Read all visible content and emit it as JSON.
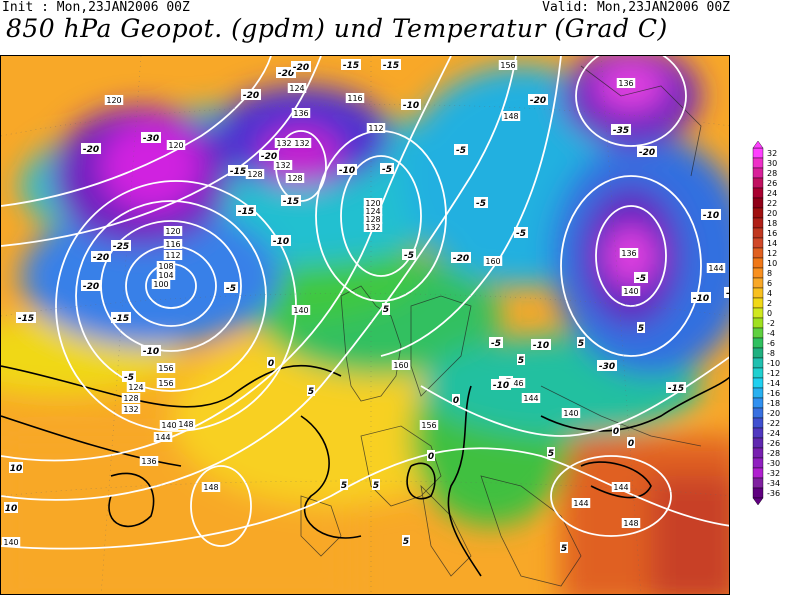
{
  "header": {
    "init_label": "Init : Mon,23JAN2006 00Z",
    "valid_label": "Valid: Mon,23JAN2006 00Z",
    "title": "850 hPa Geopot. (gpdm) und Temperatur (Grad C)"
  },
  "colorbar": {
    "levels": [
      "32",
      "30",
      "28",
      "26",
      "24",
      "22",
      "20",
      "18",
      "16",
      "14",
      "12",
      "10",
      "8",
      "6",
      "4",
      "2",
      "0",
      "-2",
      "-4",
      "-6",
      "-8",
      "-10",
      "-12",
      "-14",
      "-16",
      "-18",
      "-20",
      "-22",
      "-24",
      "-26",
      "-28",
      "-30",
      "-32",
      "-34",
      "-36"
    ],
    "colors": [
      "#ff40ff",
      "#ee30c8",
      "#d8209a",
      "#c01060",
      "#a80030",
      "#900018",
      "#a01010",
      "#b02018",
      "#c03820",
      "#d04828",
      "#e06020",
      "#f07818",
      "#f89020",
      "#f8a828",
      "#f8c020",
      "#f0d818",
      "#d0e820",
      "#a0e020",
      "#60d040",
      "#30c060",
      "#20b080",
      "#20c0b0",
      "#20d0d0",
      "#20d0f0",
      "#28b0f0",
      "#3090f0",
      "#3870e0",
      "#4050d0",
      "#5038c0",
      "#6028b0",
      "#7820b0",
      "#9020c0",
      "#b020d0",
      "#8020a0",
      "#600080"
    ]
  },
  "map_labels": {
    "geopot": [
      "120",
      "120",
      "124",
      "116",
      "112",
      "132",
      "132",
      "132",
      "128",
      "128",
      "120",
      "124",
      "128",
      "132",
      "120",
      "116",
      "112",
      "108",
      "104",
      "100",
      "140",
      "160",
      "156",
      "156",
      "148",
      "148",
      "148",
      "140",
      "144",
      "136",
      "132",
      "128",
      "124",
      "136",
      "140",
      "144",
      "156",
      "156",
      "146",
      "144",
      "140",
      "144",
      "148",
      "140",
      "136",
      "136",
      "144",
      "160"
    ],
    "temp": [
      "-20",
      "-20",
      "-30",
      "-15",
      "-20",
      "-20",
      "-15",
      "-10",
      "-5",
      "-10",
      "-15",
      "-5",
      "-5",
      "-5",
      "-25",
      "-20",
      "-20",
      "-15",
      "-10",
      "-5",
      "-5",
      "0",
      "0",
      "5",
      "5",
      "5",
      "5",
      "0",
      "10",
      "10",
      "-15",
      "-5",
      "-10",
      "-15",
      "-20",
      "-15",
      "-20",
      "-10",
      "-10",
      "-5",
      "-5",
      "-35",
      "-20",
      "-10",
      "-5",
      "5",
      "5",
      "5",
      "-30",
      "-15",
      "-10",
      "0",
      "5",
      "0",
      "0",
      "5",
      "5",
      "-20",
      "-10",
      "-5"
    ]
  }
}
